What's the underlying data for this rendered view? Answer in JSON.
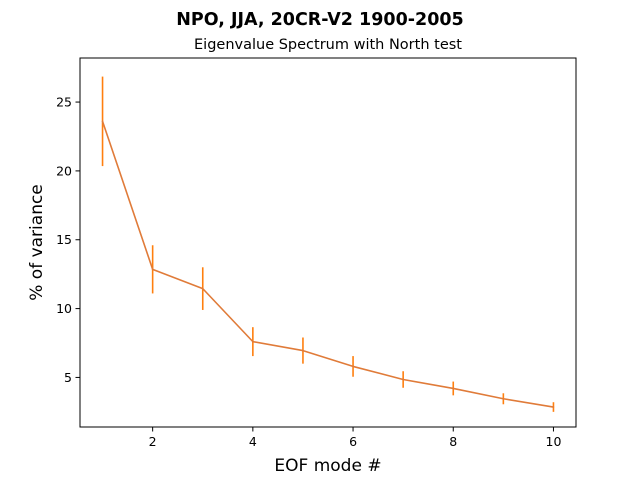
{
  "chart_data": {
    "type": "line",
    "suptitle": "NPO, JJA, 20CR-V2 1900-2005",
    "title": "Eigenvalue Spectrum with North test",
    "xlabel": "EOF mode #",
    "ylabel": "% of variance",
    "xlim": [
      0.55,
      10.45
    ],
    "ylim": [
      1.4,
      28.2
    ],
    "xticks": [
      2,
      4,
      6,
      8,
      10
    ],
    "yticks": [
      5,
      10,
      15,
      20,
      25
    ],
    "grid": false,
    "series": [
      {
        "color": "#ff7f0e",
        "line_color": "#e07b39",
        "x": [
          1,
          2,
          3,
          4,
          5,
          6,
          7,
          8,
          9,
          10
        ],
        "y": [
          23.6,
          12.85,
          11.45,
          7.6,
          6.95,
          5.8,
          4.85,
          4.2,
          3.45,
          2.85
        ],
        "error": [
          3.25,
          1.75,
          1.55,
          1.05,
          0.95,
          0.75,
          0.6,
          0.5,
          0.4,
          0.35
        ]
      }
    ]
  }
}
